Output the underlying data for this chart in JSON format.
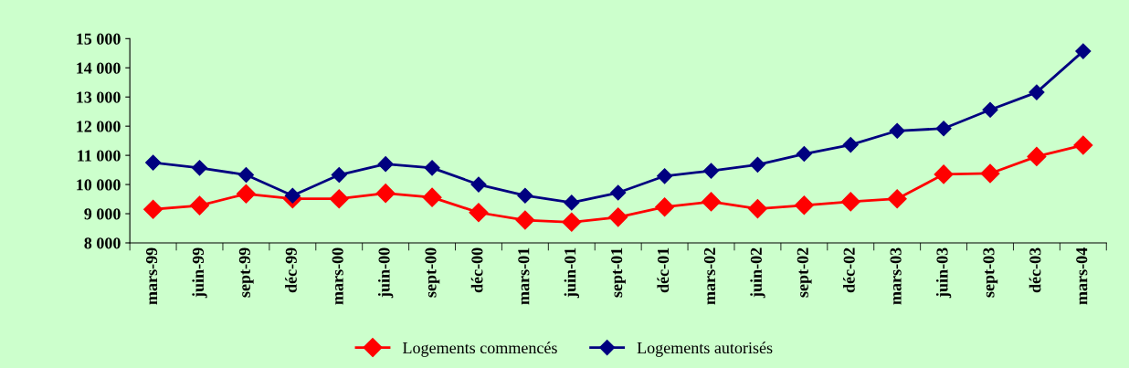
{
  "chart_data": {
    "type": "line",
    "categories": [
      "mars-99",
      "juin-99",
      "sept-99",
      "déc-99",
      "mars-00",
      "juin-00",
      "sept-00",
      "déc-00",
      "mars-01",
      "juin-01",
      "sept-01",
      "déc-01",
      "mars-02",
      "juin-02",
      "sept-02",
      "déc-02",
      "mars-03",
      "juin-03",
      "sept-03",
      "déc-03",
      "mars-04"
    ],
    "series": [
      {
        "name": "Logements commencés",
        "color": "#ff0000",
        "values": [
          9150,
          9280,
          9680,
          9510,
          9510,
          9700,
          9560,
          9040,
          8780,
          8710,
          8880,
          9230,
          9410,
          9170,
          9290,
          9410,
          9510,
          10350,
          10380,
          10960,
          11350
        ]
      },
      {
        "name": "Logements autorisés",
        "color": "#000080",
        "values": [
          10750,
          10570,
          10330,
          9620,
          10330,
          10700,
          10570,
          10000,
          9620,
          9380,
          9720,
          10290,
          10470,
          10680,
          11050,
          11360,
          11840,
          11920,
          12560,
          13160,
          14570
        ]
      }
    ],
    "ylim": [
      8000,
      15000
    ],
    "yticks": [
      {
        "value": 8000,
        "label": "8 000"
      },
      {
        "value": 9000,
        "label": "9 000"
      },
      {
        "value": 10000,
        "label": "10 000"
      },
      {
        "value": 11000,
        "label": "11 000"
      },
      {
        "value": 12000,
        "label": "12 000"
      },
      {
        "value": 13000,
        "label": "13 000"
      },
      {
        "value": 14000,
        "label": "14 000"
      },
      {
        "value": 15000,
        "label": "15 000"
      }
    ],
    "grid": false,
    "legend": "bottom",
    "marker": "diamond",
    "line_style": "solid"
  }
}
